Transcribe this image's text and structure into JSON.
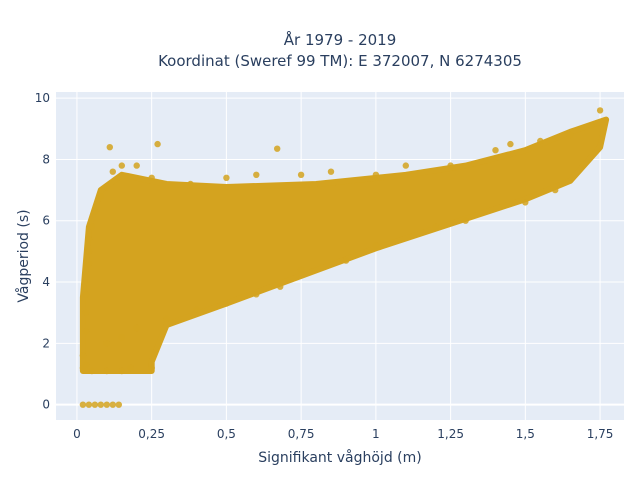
{
  "chart_data": {
    "type": "scatter",
    "title_line1": "År 1979 - 2019",
    "title_line2": "Koordinat (Sweref 99 TM): E 372007, N 6274305",
    "xlabel": "Signifikant våghöjd (m)",
    "ylabel": "Vågperiod (s)",
    "xlim": [
      -0.07,
      1.83
    ],
    "ylim": [
      -0.5,
      10.2
    ],
    "xticks": [
      0,
      0.25,
      0.5,
      0.75,
      1,
      1.25,
      1.5,
      1.75
    ],
    "xtick_labels": [
      "0",
      "0,25",
      "0,5",
      "0,75",
      "1",
      "1,25",
      "1,5",
      "1,75"
    ],
    "yticks": [
      0,
      2,
      4,
      6,
      8,
      10
    ],
    "ytick_labels": [
      "0",
      "2",
      "4",
      "6",
      "8",
      "10"
    ],
    "grid": true,
    "marker_color": "#d4a31f",
    "plot_background": "#e5ecf6",
    "points": [
      [
        0.02,
        0
      ],
      [
        0.04,
        0
      ],
      [
        0.06,
        0
      ],
      [
        0.08,
        0
      ],
      [
        0.1,
        0
      ],
      [
        0.12,
        0
      ],
      [
        0.14,
        0
      ],
      [
        0.02,
        1.2
      ],
      [
        0.02,
        1.6
      ],
      [
        0.03,
        1.3
      ],
      [
        0.05,
        1.1
      ],
      [
        0.1,
        1.1
      ],
      [
        0.15,
        1.1
      ],
      [
        0.18,
        1.2
      ],
      [
        0.25,
        1.2
      ],
      [
        0.03,
        2.4
      ],
      [
        0.03,
        3.0
      ],
      [
        0.03,
        3.6
      ],
      [
        0.04,
        4.6
      ],
      [
        0.04,
        5.0
      ],
      [
        0.04,
        5.4
      ],
      [
        0.05,
        5.8
      ],
      [
        0.06,
        6.3
      ],
      [
        0.08,
        6.8
      ],
      [
        0.1,
        7.1
      ],
      [
        0.12,
        7.6
      ],
      [
        0.15,
        7.8
      ],
      [
        0.2,
        7.8
      ],
      [
        0.25,
        7.4
      ],
      [
        0.27,
        8.5
      ],
      [
        0.11,
        8.4
      ],
      [
        0.67,
        8.35
      ],
      [
        0.38,
        7.2
      ],
      [
        0.5,
        7.4
      ],
      [
        0.6,
        7.5
      ],
      [
        0.75,
        7.5
      ],
      [
        0.85,
        7.6
      ],
      [
        1.0,
        7.5
      ],
      [
        1.1,
        7.8
      ],
      [
        1.25,
        7.8
      ],
      [
        1.4,
        8.3
      ],
      [
        1.45,
        8.5
      ],
      [
        1.55,
        8.6
      ],
      [
        1.65,
        8.8
      ],
      [
        1.72,
        9.1
      ],
      [
        1.75,
        9.6
      ],
      [
        0.1,
        2.0
      ],
      [
        0.15,
        2.2
      ],
      [
        0.2,
        2.5
      ],
      [
        0.3,
        2.8
      ],
      [
        0.4,
        3.1
      ],
      [
        0.5,
        3.3
      ],
      [
        0.6,
        3.6
      ],
      [
        0.68,
        3.85
      ],
      [
        0.75,
        4.4
      ],
      [
        0.9,
        4.7
      ],
      [
        1.0,
        5.2
      ],
      [
        1.2,
        5.8
      ],
      [
        1.3,
        6.0
      ],
      [
        1.5,
        6.6
      ],
      [
        1.6,
        7.0
      ]
    ]
  }
}
